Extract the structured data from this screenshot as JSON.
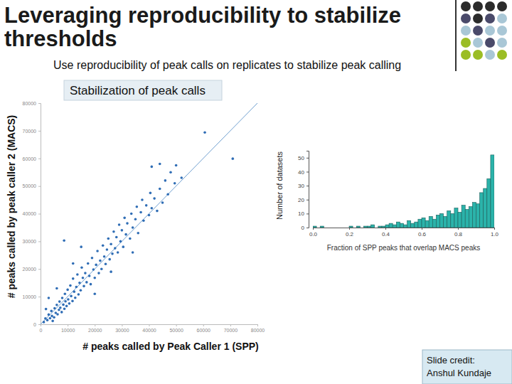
{
  "slide": {
    "title": [
      "Leveraging reproducibility to stabilize",
      "thresholds"
    ],
    "subtitle": "Use reproducibility of peak calls on replicates to stabilize peak calling",
    "credit": [
      "Slide credit:",
      "Anshul Kundaje"
    ]
  },
  "chart_data": [
    {
      "type": "scatter",
      "title": "Stabilization of peak calls",
      "x_label": "# peaks called by Peak Caller 1 (SPP)",
      "y_label": "# peaks called by peak caller 2 (MACS)",
      "color": "#2f6db5",
      "marker": "circle",
      "xlim": [
        0,
        80000
      ],
      "ylim": [
        0,
        80000
      ],
      "xticks": [
        0,
        10000,
        20000,
        30000,
        40000,
        50000,
        60000,
        70000,
        80000
      ],
      "yticks": [
        0,
        10000,
        20000,
        30000,
        40000,
        50000,
        60000,
        70000,
        80000
      ],
      "x": [
        1200,
        1800,
        2500,
        3000,
        3500,
        4000,
        4200,
        5000,
        5200,
        5600,
        6000,
        6300,
        6800,
        7000,
        7300,
        7800,
        8000,
        8400,
        8800,
        9000,
        9200,
        9600,
        10000,
        10200,
        10600,
        11000,
        11300,
        11800,
        12000,
        12400,
        12800,
        13200,
        13600,
        14000,
        14400,
        14800,
        15200,
        15600,
        16000,
        16500,
        17000,
        17500,
        18000,
        18500,
        19000,
        19500,
        20000,
        20500,
        21000,
        21500,
        22000,
        22500,
        23000,
        23500,
        24000,
        24500,
        25000,
        25500,
        26000,
        26500,
        27000,
        27500,
        28000,
        28500,
        29000,
        29500,
        30000,
        30500,
        31000,
        31500,
        32000,
        33000,
        33500,
        34000,
        35000,
        35500,
        36000,
        37000,
        37500,
        38000,
        39000,
        40000,
        40500,
        41000,
        42000,
        43000,
        44000,
        45000,
        46000,
        47000,
        48000,
        50000,
        49500,
        44000,
        41000,
        52000,
        8700,
        60600,
        70900,
        3000,
        6000,
        12000,
        15000,
        26000,
        34000,
        20000,
        2000,
        4500
      ],
      "values": [
        800,
        2100,
        1500,
        3500,
        2200,
        4800,
        3000,
        2500,
        5800,
        4100,
        7000,
        3600,
        5200,
        8200,
        6000,
        4400,
        9500,
        7100,
        5600,
        11000,
        8300,
        6600,
        12500,
        9000,
        7500,
        14000,
        10200,
        8400,
        16500,
        11800,
        9600,
        13500,
        18000,
        10800,
        15000,
        12300,
        20500,
        16800,
        13800,
        18500,
        15200,
        22000,
        17500,
        14500,
        24000,
        19800,
        16800,
        21500,
        26500,
        18500,
        23000,
        20000,
        28500,
        24500,
        21800,
        27000,
        31000,
        23500,
        29000,
        25500,
        33500,
        27500,
        31500,
        26000,
        36000,
        30000,
        34000,
        28000,
        38500,
        32500,
        36500,
        31000,
        40000,
        35000,
        38000,
        42500,
        33000,
        40500,
        45000,
        37500,
        43000,
        39500,
        47500,
        42000,
        45500,
        41000,
        49000,
        44000,
        52000,
        47000,
        55000,
        57500,
        51000,
        58000,
        57000,
        53000,
        30300,
        69400,
        59900,
        9500,
        13000,
        22000,
        28000,
        19000,
        26000,
        11000,
        5500,
        1200
      ]
    },
    {
      "type": "histogram",
      "x_label": "Fraction of SPP peaks that overlap MACS peaks",
      "y_label": "Number of datasets",
      "color": "#2bb3aa",
      "xlim": [
        0,
        1
      ],
      "ylim": [
        0,
        55
      ],
      "xticks": [
        {
          "value": 0,
          "label": "0.0"
        },
        0.2,
        0.4,
        0.6,
        0.8,
        {
          "value": 1,
          "label": "1.0"
        }
      ],
      "yticks": [
        0,
        10,
        20,
        30,
        40,
        50
      ],
      "bins": [
        0,
        0.02,
        0.04,
        0.06,
        0.08,
        0.1,
        0.12,
        0.14,
        0.16,
        0.18,
        0.2,
        0.22,
        0.24,
        0.26,
        0.28,
        0.3,
        0.32,
        0.34,
        0.36,
        0.38,
        0.4,
        0.42,
        0.44,
        0.46,
        0.48,
        0.5,
        0.52,
        0.54,
        0.56,
        0.58,
        0.6,
        0.62,
        0.64,
        0.66,
        0.68,
        0.7,
        0.72,
        0.74,
        0.76,
        0.78,
        0.8,
        0.82,
        0.84,
        0.86,
        0.88,
        0.9,
        0.92,
        0.94,
        0.96,
        0.98,
        1
      ],
      "values": [
        1,
        0,
        1,
        0,
        0,
        0,
        0,
        0,
        0,
        0,
        1,
        0,
        1,
        0,
        1,
        1,
        2,
        0,
        1,
        1,
        2,
        3,
        2,
        4,
        3,
        2,
        5,
        3,
        4,
        6,
        7,
        5,
        8,
        6,
        9,
        10,
        8,
        12,
        10,
        14,
        11,
        16,
        13,
        15,
        18,
        17,
        25,
        28,
        35,
        52
      ]
    }
  ]
}
